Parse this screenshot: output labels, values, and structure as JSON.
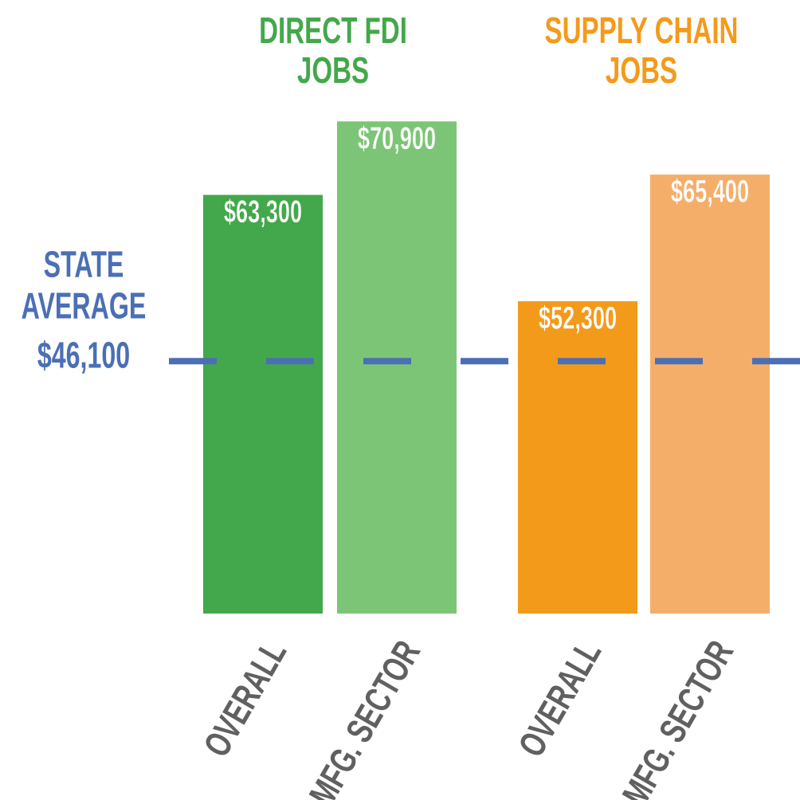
{
  "chart_data": {
    "type": "bar",
    "ylim": [
      20000,
      72000
    ],
    "reference": {
      "label_lines": [
        "STATE",
        "AVERAGE"
      ],
      "value": 46100,
      "value_label": "$46,100",
      "color": "#4a6fb5"
    },
    "groups": [
      {
        "title_lines": [
          "DIRECT FDI",
          "JOBS"
        ],
        "title_color": "#43a84b",
        "categories": [
          "OVERALL",
          "MFG. SECTOR"
        ],
        "values": [
          63300,
          70900
        ],
        "value_labels": [
          "$63,300",
          "$70,900"
        ],
        "colors": [
          "#43a84b",
          "#7dc576"
        ]
      },
      {
        "title_lines": [
          "SUPPLY CHAIN",
          "JOBS"
        ],
        "title_color": "#f49a1b",
        "categories": [
          "OVERALL",
          "MFG. SECTOR"
        ],
        "values": [
          52300,
          65400
        ],
        "value_labels": [
          "$52,300",
          "$65,400"
        ],
        "colors": [
          "#f49a1b",
          "#f5ae6a"
        ]
      }
    ]
  }
}
